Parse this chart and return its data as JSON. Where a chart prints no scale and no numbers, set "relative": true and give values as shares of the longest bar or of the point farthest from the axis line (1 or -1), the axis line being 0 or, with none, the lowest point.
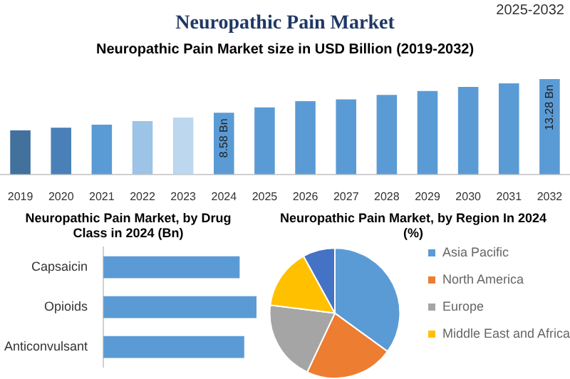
{
  "chart_data": [
    {
      "type": "bar",
      "title": "Neuropathic Pain Market",
      "subtitle": "Neuropathic Pain Market size in USD Billion (2019-2032)",
      "annotations": [
        "2025-2032"
      ],
      "categories": [
        "2019",
        "2020",
        "2021",
        "2022",
        "2023",
        "2024",
        "2025",
        "2026",
        "2027",
        "2028",
        "2029",
        "2030",
        "2031",
        "2032"
      ],
      "values": [
        6.14,
        6.5,
        6.93,
        7.42,
        7.91,
        8.58,
        9.32,
        10.21,
        10.45,
        11.06,
        11.62,
        12.18,
        12.68,
        13.28
      ],
      "colors": [
        "#41719c",
        "#4a80b8",
        "#5b9bd5",
        "#9dc3e6",
        "#bdd7ee",
        "#5b9bd5",
        "#5b9bd5",
        "#5b9bd5",
        "#5b9bd5",
        "#5b9bd5",
        "#5b9bd5",
        "#5b9bd5",
        "#5b9bd5",
        "#5b9bd5"
      ],
      "value_labels": [
        null,
        null,
        null,
        null,
        null,
        "8.58 Bn",
        null,
        null,
        null,
        null,
        null,
        null,
        null,
        "13.28 Bn"
      ],
      "tick_labels": "x",
      "grid": false,
      "legend": false
    },
    {
      "type": "bar",
      "orientation": "horizontal",
      "relative": true,
      "title": "Neuropathic Pain Market, by Drug Class in 2024 (Bn)",
      "categories": [
        "Capsaicin",
        "Opioids",
        "Anticonvulsant"
      ],
      "values": [
        0.89,
        1,
        0.92
      ],
      "color": "#5b9bd5",
      "grid": false,
      "legend": false
    },
    {
      "type": "pie",
      "title": "Neuropathic Pain Market, by Region In 2024 (%)",
      "categories": [
        "Asia Pacific",
        "North America",
        "Europe",
        "Middle East and Africa",
        null
      ],
      "values": [
        35,
        22,
        20,
        15,
        8
      ],
      "colors": [
        "#5b9bd5",
        "#ed7d31",
        "#a5a5a5",
        "#ffc000",
        "#4472c4"
      ],
      "legend": "right"
    }
  ]
}
